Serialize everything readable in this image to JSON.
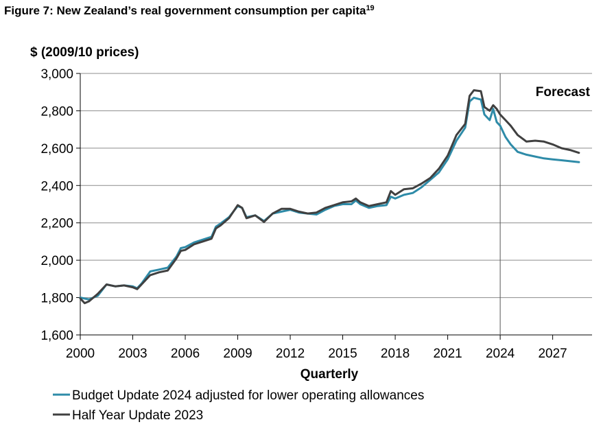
{
  "figure": {
    "title": "Figure 7: New Zealand’s real government consumption per capita",
    "footnote": "19"
  },
  "chart_data": {
    "type": "line",
    "title": "Figure 7: New Zealand’s real government consumption per capita",
    "ylabel": "$ (2009/10 prices)",
    "xlabel": "Quarterly",
    "ylim": [
      1600,
      3000
    ],
    "xlim": [
      2000,
      2029.25
    ],
    "yticks": [
      1600,
      1800,
      2000,
      2200,
      2400,
      2600,
      2800,
      3000
    ],
    "ytick_labels": [
      "1,600",
      "1,800",
      "2,000",
      "2,200",
      "2,400",
      "2,600",
      "2,800",
      "3,000"
    ],
    "xticks": [
      2000,
      2003,
      2006,
      2009,
      2012,
      2015,
      2018,
      2021,
      2024,
      2027
    ],
    "xtick_labels": [
      "2000",
      "2003",
      "2006",
      "2009",
      "2012",
      "2015",
      "2018",
      "2021",
      "2024",
      "2027"
    ],
    "grid": "horizontal",
    "forecast": {
      "x": 2024,
      "label": "Forecast"
    },
    "legend_position": "bottom",
    "series": [
      {
        "name": "Budget Update 2024 adjusted for lower operating allowances",
        "color": "#2E8BA8",
        "points": [
          [
            2000.0,
            1800
          ],
          [
            2000.5,
            1790
          ],
          [
            2001.0,
            1810
          ],
          [
            2001.5,
            1870
          ],
          [
            2002.0,
            1860
          ],
          [
            2002.5,
            1865
          ],
          [
            2003.0,
            1860
          ],
          [
            2003.25,
            1850
          ],
          [
            2003.5,
            1875
          ],
          [
            2004.0,
            1940
          ],
          [
            2004.5,
            1950
          ],
          [
            2005.0,
            1960
          ],
          [
            2005.5,
            2020
          ],
          [
            2005.75,
            2065
          ],
          [
            2006.0,
            2070
          ],
          [
            2006.5,
            2095
          ],
          [
            2007.0,
            2110
          ],
          [
            2007.5,
            2125
          ],
          [
            2007.75,
            2180
          ],
          [
            2008.0,
            2195
          ],
          [
            2008.5,
            2230
          ],
          [
            2009.0,
            2290
          ],
          [
            2009.25,
            2280
          ],
          [
            2009.5,
            2230
          ],
          [
            2010.0,
            2240
          ],
          [
            2010.5,
            2210
          ],
          [
            2011.0,
            2250
          ],
          [
            2011.5,
            2260
          ],
          [
            2012.0,
            2270
          ],
          [
            2012.5,
            2255
          ],
          [
            2013.0,
            2250
          ],
          [
            2013.5,
            2245
          ],
          [
            2014.0,
            2270
          ],
          [
            2014.5,
            2290
          ],
          [
            2015.0,
            2300
          ],
          [
            2015.5,
            2300
          ],
          [
            2015.75,
            2320
          ],
          [
            2016.0,
            2300
          ],
          [
            2016.5,
            2280
          ],
          [
            2017.0,
            2290
          ],
          [
            2017.5,
            2295
          ],
          [
            2017.75,
            2340
          ],
          [
            2018.0,
            2330
          ],
          [
            2018.5,
            2350
          ],
          [
            2019.0,
            2360
          ],
          [
            2019.5,
            2390
          ],
          [
            2020.0,
            2430
          ],
          [
            2020.5,
            2470
          ],
          [
            2021.0,
            2540
          ],
          [
            2021.5,
            2640
          ],
          [
            2022.0,
            2710
          ],
          [
            2022.25,
            2850
          ],
          [
            2022.5,
            2870
          ],
          [
            2022.9,
            2860
          ],
          [
            2023.1,
            2780
          ],
          [
            2023.4,
            2750
          ],
          [
            2023.6,
            2810
          ],
          [
            2023.8,
            2740
          ],
          [
            2024.0,
            2720
          ],
          [
            2024.3,
            2660
          ],
          [
            2024.6,
            2620
          ],
          [
            2025.0,
            2580
          ],
          [
            2025.5,
            2565
          ],
          [
            2026.0,
            2555
          ],
          [
            2026.5,
            2545
          ],
          [
            2027.0,
            2540
          ],
          [
            2027.5,
            2535
          ],
          [
            2028.0,
            2530
          ],
          [
            2028.5,
            2525
          ]
        ]
      },
      {
        "name": "Half Year Update 2023",
        "color": "#404040",
        "points": [
          [
            2000.0,
            1795
          ],
          [
            2000.25,
            1770
          ],
          [
            2000.5,
            1780
          ],
          [
            2001.0,
            1820
          ],
          [
            2001.5,
            1870
          ],
          [
            2002.0,
            1860
          ],
          [
            2002.5,
            1865
          ],
          [
            2003.0,
            1855
          ],
          [
            2003.25,
            1845
          ],
          [
            2003.5,
            1870
          ],
          [
            2004.0,
            1920
          ],
          [
            2004.5,
            1935
          ],
          [
            2005.0,
            1945
          ],
          [
            2005.5,
            2010
          ],
          [
            2005.75,
            2050
          ],
          [
            2006.0,
            2055
          ],
          [
            2006.5,
            2085
          ],
          [
            2007.0,
            2100
          ],
          [
            2007.5,
            2115
          ],
          [
            2007.75,
            2170
          ],
          [
            2008.0,
            2185
          ],
          [
            2008.5,
            2225
          ],
          [
            2009.0,
            2295
          ],
          [
            2009.25,
            2280
          ],
          [
            2009.5,
            2225
          ],
          [
            2010.0,
            2240
          ],
          [
            2010.5,
            2205
          ],
          [
            2011.0,
            2250
          ],
          [
            2011.5,
            2275
          ],
          [
            2012.0,
            2275
          ],
          [
            2012.5,
            2260
          ],
          [
            2013.0,
            2250
          ],
          [
            2013.5,
            2255
          ],
          [
            2014.0,
            2280
          ],
          [
            2014.5,
            2295
          ],
          [
            2015.0,
            2310
          ],
          [
            2015.5,
            2315
          ],
          [
            2015.75,
            2330
          ],
          [
            2016.0,
            2310
          ],
          [
            2016.5,
            2290
          ],
          [
            2017.0,
            2300
          ],
          [
            2017.5,
            2310
          ],
          [
            2017.75,
            2370
          ],
          [
            2018.0,
            2350
          ],
          [
            2018.5,
            2380
          ],
          [
            2019.0,
            2385
          ],
          [
            2019.5,
            2410
          ],
          [
            2020.0,
            2440
          ],
          [
            2020.5,
            2490
          ],
          [
            2021.0,
            2560
          ],
          [
            2021.5,
            2670
          ],
          [
            2022.0,
            2730
          ],
          [
            2022.25,
            2880
          ],
          [
            2022.5,
            2910
          ],
          [
            2022.9,
            2905
          ],
          [
            2023.1,
            2820
          ],
          [
            2023.4,
            2800
          ],
          [
            2023.6,
            2830
          ],
          [
            2023.8,
            2810
          ],
          [
            2024.0,
            2780
          ],
          [
            2024.3,
            2750
          ],
          [
            2024.6,
            2720
          ],
          [
            2025.0,
            2670
          ],
          [
            2025.5,
            2635
          ],
          [
            2026.0,
            2640
          ],
          [
            2026.5,
            2635
          ],
          [
            2027.0,
            2620
          ],
          [
            2027.5,
            2600
          ],
          [
            2028.0,
            2590
          ],
          [
            2028.5,
            2575
          ]
        ]
      }
    ]
  }
}
